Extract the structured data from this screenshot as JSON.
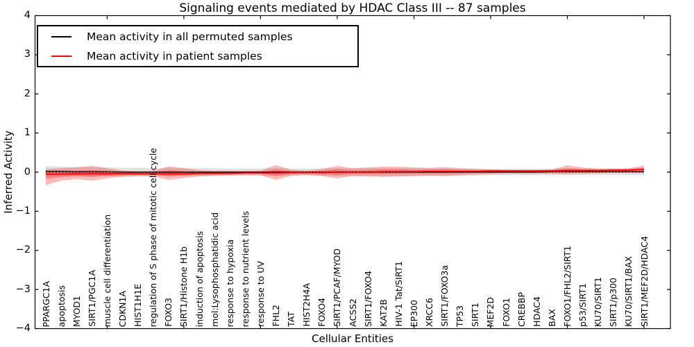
{
  "title": "Signaling events mediated by HDAC Class III -- 87 samples",
  "legend": {
    "items": [
      {
        "label": "Mean activity in all permuted samples",
        "color": "#000000"
      },
      {
        "label": "Mean activity in patient samples",
        "color": "#ff0000"
      }
    ]
  },
  "axes": {
    "ylabel": "Inferred Activity",
    "xlabel": "Cellular Entities",
    "ytick_labels": [
      "4",
      "3",
      "2",
      "1",
      "0",
      "−1",
      "−2",
      "−3",
      "−4"
    ]
  },
  "colors": {
    "frame": "#000000",
    "permuted_line": "#000000",
    "patient_line": "#ff0000",
    "permuted_band": "#c9c9c9",
    "patient_band": "#ff0000",
    "background": "#ffffff"
  },
  "chart_data": {
    "type": "line",
    "title": "Signaling events mediated by HDAC Class III -- 87 samples",
    "xlabel": "Cellular Entities",
    "ylabel": "Inferred Activity",
    "ylim": [
      -4,
      4
    ],
    "yticks": [
      4,
      3,
      2,
      1,
      0,
      -1,
      -2,
      -3,
      -4
    ],
    "grid": false,
    "legend_position": "upper left",
    "zero_line_style": "dotted",
    "categories": [
      "PPARGC1A",
      "apoptosis",
      "MYOD1",
      "SIRT1/PGC1A",
      "muscle cell differentiation",
      "CDKN1A",
      "HIST1H1E",
      "regulation of S phase of mitotic cell cycle",
      "FOXO3",
      "SIRT1/Histone H1b",
      "induction of apoptosis",
      "mol:Lysophosphatidic acid",
      "response to hypoxia",
      "response to nutrient levels",
      "response to UV",
      "FHL2",
      "TAT",
      "HIST2H4A",
      "FOXO4",
      "SIRT1/PCAF/MYOD",
      "ACSS2",
      "SIRT1/FOXO4",
      "KAT2B",
      "HIV-1 Tat/SIRT1",
      "EP300",
      "XRCC6",
      "SIRT1/FOXO3a",
      "TP53",
      "SIRT1",
      "MEF2D",
      "FOXO1",
      "CREBBP",
      "HDAC4",
      "BAX",
      "FOXO1/FHL2/SIRT1",
      "p53/SIRT1",
      "KU70/SIRT1",
      "SIRT1/p300",
      "KU70/SIRT1/BAX",
      "SIRT1/MEF2D/HDAC4"
    ],
    "series": [
      {
        "name": "Mean activity in all permuted samples",
        "color": "#000000",
        "values": [
          0.02,
          0.02,
          0.01,
          0.01,
          0.01,
          0.0,
          0.0,
          0.0,
          0.0,
          0.0,
          0.0,
          0.0,
          0.0,
          0.0,
          0.0,
          0.0,
          0.0,
          0.0,
          0.0,
          0.0,
          0.0,
          0.0,
          0.0,
          0.0,
          0.0,
          0.0,
          0.0,
          0.0,
          0.0,
          0.0,
          0.0,
          0.0,
          0.0,
          0.01,
          0.01,
          0.01,
          0.01,
          0.01,
          0.01,
          0.01
        ],
        "std": [
          0.13,
          0.12,
          0.12,
          0.12,
          0.11,
          0.11,
          0.11,
          0.1,
          0.1,
          0.1,
          0.1,
          0.1,
          0.09,
          0.09,
          0.09,
          0.1,
          0.09,
          0.09,
          0.09,
          0.1,
          0.1,
          0.1,
          0.1,
          0.1,
          0.1,
          0.09,
          0.09,
          0.09,
          0.09,
          0.08,
          0.08,
          0.08,
          0.08,
          0.08,
          0.09,
          0.08,
          0.08,
          0.08,
          0.08,
          0.09
        ]
      },
      {
        "name": "Mean activity in patient samples",
        "color": "#ff0000",
        "values": [
          -0.05,
          -0.05,
          -0.04,
          -0.04,
          -0.04,
          -0.04,
          -0.04,
          -0.04,
          -0.04,
          -0.04,
          -0.03,
          -0.03,
          -0.03,
          -0.02,
          -0.02,
          -0.02,
          -0.01,
          -0.01,
          -0.01,
          0.0,
          0.0,
          0.0,
          0.01,
          0.01,
          0.01,
          0.02,
          0.02,
          0.02,
          0.02,
          0.03,
          0.03,
          0.03,
          0.03,
          0.03,
          0.04,
          0.04,
          0.04,
          0.05,
          0.05,
          0.07
        ],
        "band_upper": [
          0.08,
          0.1,
          0.12,
          0.16,
          0.1,
          0.04,
          0.02,
          0.03,
          0.15,
          0.1,
          0.05,
          0.03,
          0.03,
          0.03,
          0.04,
          0.18,
          0.06,
          0.04,
          0.08,
          0.16,
          0.1,
          0.12,
          0.14,
          0.14,
          0.12,
          0.11,
          0.13,
          0.1,
          0.08,
          0.07,
          0.06,
          0.06,
          0.06,
          0.07,
          0.17,
          0.12,
          0.09,
          0.09,
          0.1,
          0.17
        ],
        "band_lower": [
          -0.33,
          -0.22,
          -0.18,
          -0.22,
          -0.16,
          -0.12,
          -0.1,
          -0.11,
          -0.2,
          -0.15,
          -0.11,
          -0.09,
          -0.08,
          -0.08,
          -0.08,
          -0.2,
          -0.09,
          -0.07,
          -0.1,
          -0.16,
          -0.1,
          -0.11,
          -0.12,
          -0.11,
          -0.1,
          -0.09,
          -0.1,
          -0.08,
          -0.06,
          -0.05,
          -0.04,
          -0.04,
          -0.04,
          -0.04,
          -0.05,
          -0.04,
          -0.03,
          -0.02,
          -0.02,
          -0.02
        ]
      }
    ]
  }
}
